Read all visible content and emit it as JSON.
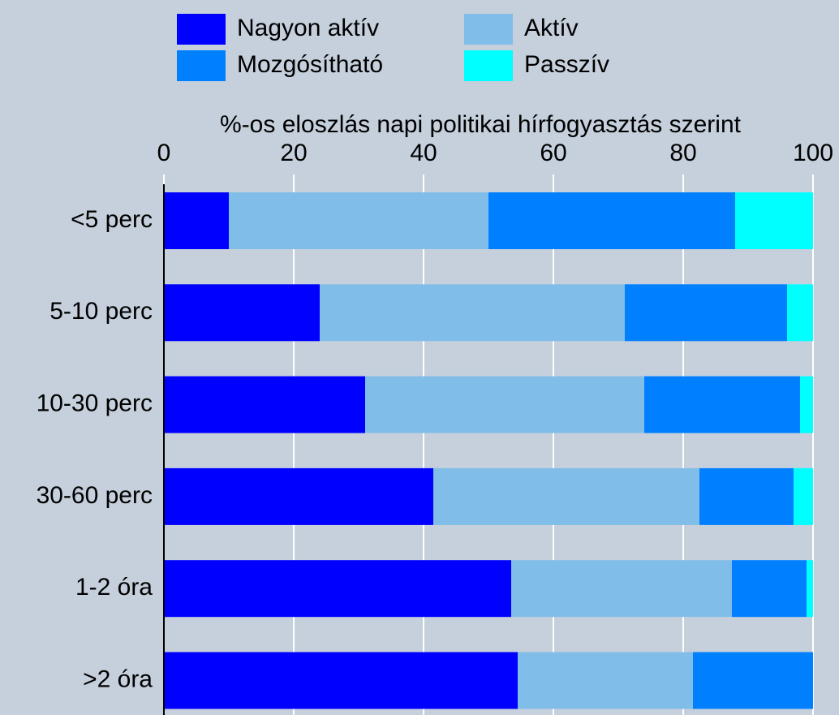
{
  "chart_data": {
    "type": "stacked_barh",
    "x_label": "%-os eloszlás napi politikai hírfogyasztás szerint",
    "categories": [
      "<5 perc",
      "5-10 perc",
      "10-30 perc",
      "30-60 perc",
      "1-2 óra",
      ">2 óra"
    ],
    "series": [
      {
        "name": "Nagyon aktív",
        "color": "#0000ff",
        "values": [
          10,
          24,
          31,
          41.5,
          53.5,
          54.5
        ]
      },
      {
        "name": "Aktív",
        "color": "#80bde8",
        "values": [
          40,
          47,
          43,
          41,
          34,
          27
        ]
      },
      {
        "name": "Mozgósítható",
        "color": "#0080ff",
        "values": [
          38,
          25,
          24,
          14.5,
          11.5,
          18.5
        ]
      },
      {
        "name": "Passzív",
        "color": "#00ffff",
        "values": [
          12,
          4,
          2,
          3,
          1,
          0
        ]
      }
    ],
    "xlim": [
      0,
      100
    ],
    "xticks": [
      0,
      20,
      40,
      60,
      80,
      100
    ],
    "grid": true,
    "legend": "top"
  }
}
